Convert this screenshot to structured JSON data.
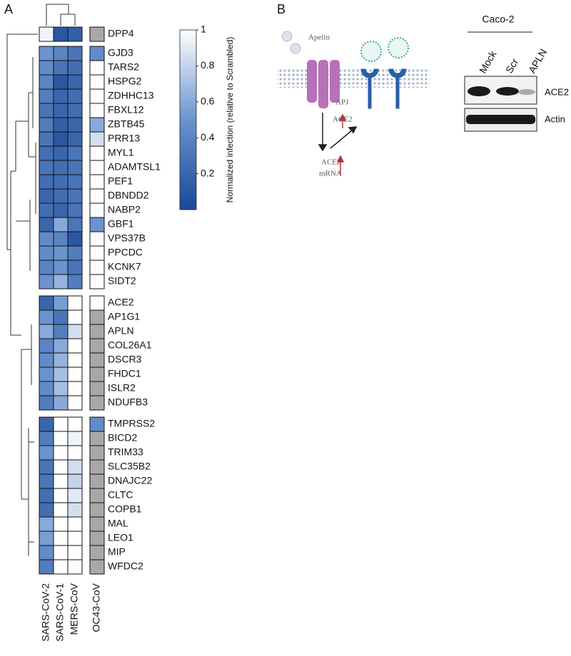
{
  "panel_labels": [
    "A",
    "B"
  ],
  "chart_data": {
    "type": "heatmap",
    "rows": [
      "DPP4",
      "GJD3",
      "TARS2",
      "HSPG2",
      "ZDHHC13",
      "FBXL12",
      "ZBTB45",
      "PRR13",
      "MYL1",
      "ADAMTSL1",
      "PEF1",
      "DBNDD2",
      "NABP2",
      "GBF1",
      "VPS37B",
      "PPCDC",
      "KCNK7",
      "SIDT2",
      "ACE2",
      "AP1G1",
      "APLN",
      "COL26A1",
      "DSCR3",
      "FHDC1",
      "ISLR2",
      "NDUFB3",
      "TMPRSS2",
      "BICD2",
      "TRIM33",
      "SLC35B2",
      "DNAJC22",
      "CLTC",
      "COPB1",
      "MAL",
      "LEO1",
      "MIP",
      "WFDC2"
    ],
    "columns": [
      "SARS-CoV-2",
      "SARS-CoV-1",
      "MERS-CoV",
      "OC43-CoV"
    ],
    "values": [
      [
        0.95,
        0.1,
        0.15,
        null
      ],
      [
        0.5,
        0.4,
        0.3,
        0.45
      ],
      [
        0.45,
        0.3,
        0.25,
        1
      ],
      [
        0.4,
        0.1,
        0.2,
        1
      ],
      [
        0.35,
        0.2,
        0.25,
        1
      ],
      [
        0.3,
        0.2,
        0.25,
        1
      ],
      [
        0.35,
        0.15,
        0.2,
        0.6
      ],
      [
        0.3,
        0.1,
        0.2,
        0.85
      ],
      [
        0.25,
        0.2,
        0.3,
        1
      ],
      [
        0.3,
        0.25,
        0.3,
        1
      ],
      [
        0.25,
        0.25,
        0.3,
        1
      ],
      [
        0.2,
        0.25,
        0.3,
        1
      ],
      [
        0.25,
        0.2,
        0.3,
        1
      ],
      [
        0.2,
        0.6,
        0.3,
        0.5
      ],
      [
        0.45,
        0.4,
        0.1,
        1
      ],
      [
        0.45,
        0.5,
        0.35,
        1
      ],
      [
        0.4,
        0.5,
        0.3,
        1
      ],
      [
        0.5,
        0.65,
        0.35,
        1
      ],
      [
        0.2,
        0.55,
        1,
        1
      ],
      [
        0.5,
        0.3,
        1,
        null
      ],
      [
        0.6,
        0.35,
        0.85,
        null
      ],
      [
        0.4,
        0.6,
        1,
        null
      ],
      [
        0.45,
        0.65,
        1,
        null
      ],
      [
        0.5,
        0.7,
        1,
        null
      ],
      [
        0.45,
        0.7,
        1,
        null
      ],
      [
        0.35,
        0.6,
        1,
        null
      ],
      [
        0.2,
        1,
        1,
        0.45
      ],
      [
        0.35,
        1,
        0.95,
        null
      ],
      [
        0.5,
        1,
        1,
        null
      ],
      [
        0.3,
        1,
        0.85,
        null
      ],
      [
        0.3,
        1,
        0.8,
        null
      ],
      [
        0.25,
        1,
        0.9,
        null
      ],
      [
        0.25,
        1,
        0.85,
        null
      ],
      [
        0.6,
        1,
        1,
        null
      ],
      [
        0.55,
        1,
        1,
        null
      ],
      [
        0.45,
        1,
        1,
        null
      ],
      [
        0.35,
        1,
        1,
        null
      ]
    ],
    "missing_color": "#a8a8a8",
    "colorbar": {
      "label": "Normalized infection (relative to Scrambled)",
      "clim": [
        0,
        1
      ],
      "ticks": [
        0.2,
        0.4,
        0.6,
        0.8,
        1
      ],
      "colors": [
        "#1a4896",
        "#6a93cf",
        "#ffffff"
      ]
    }
  },
  "diagram": {
    "ligand": "Apelin",
    "receptor": "APJ",
    "mrna_gene": "ACE2",
    "mrna": "mRNA",
    "surface_protein": "ACE2"
  },
  "western_blot": {
    "cell_line": "Caco-2",
    "lanes": [
      "Mock",
      "Scr",
      "APLN"
    ],
    "proteins": [
      "ACE2",
      "Actin"
    ]
  }
}
